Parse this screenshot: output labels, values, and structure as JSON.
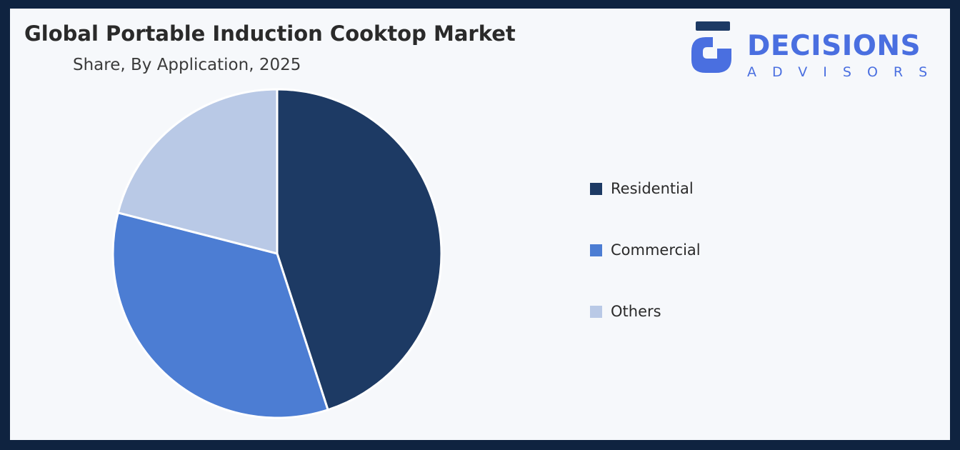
{
  "header": {
    "title": "Global Portable Induction Cooktop Market",
    "subtitle": "Share, By Application, 2025"
  },
  "logo": {
    "word": "DECISIONS",
    "sub": "ADVISORS",
    "color": "#4a6fe0",
    "icon": "decisions-advisors-logo-icon"
  },
  "chart_data": {
    "type": "pie",
    "title": "Global Portable Induction Cooktop Market",
    "subtitle": "Share, By Application, 2025",
    "categories": [
      "Residential",
      "Commercial",
      "Others"
    ],
    "values": [
      45,
      34,
      21
    ],
    "colors": [
      "#1d3a64",
      "#4c7dd3",
      "#b9c9e6"
    ],
    "start_angle_deg": 0,
    "direction": "clockwise",
    "legend_position": "right"
  }
}
